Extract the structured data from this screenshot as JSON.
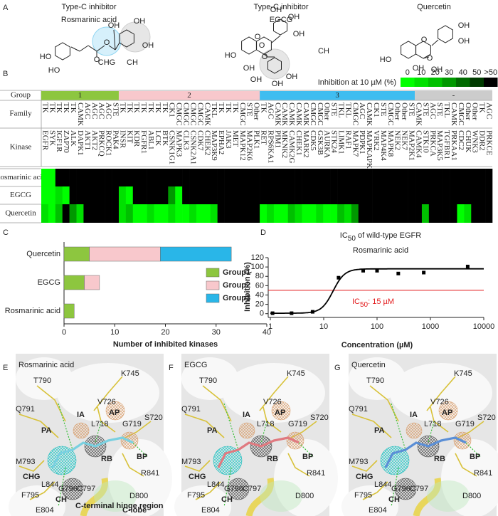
{
  "panel_letters": [
    "A",
    "B",
    "C",
    "D",
    "E",
    "F",
    "G"
  ],
  "panel_a": {
    "molecules": [
      {
        "caption": [
          "Type-C inhibitor",
          "Rosmarinic acid"
        ],
        "atoms": [
          "HO",
          "HO",
          "O",
          "O",
          "OH",
          "OH",
          "OH"
        ],
        "regions": [
          "CHG",
          "CH"
        ],
        "region_colors": [
          "#29abe2",
          "#9a9a9a"
        ]
      },
      {
        "caption": [
          "Type-C inhibitor",
          "EGCG"
        ],
        "atoms": [
          "HO",
          "O",
          "OH",
          "OH",
          "OH",
          "OH",
          "O",
          "O",
          "OH",
          "OH",
          "OH"
        ],
        "regions": [
          "CH"
        ],
        "region_colors": [
          "#9a9a9a"
        ]
      },
      {
        "caption": [
          "Quercetin"
        ],
        "atoms": [
          "HO",
          "O",
          "OH",
          "OH",
          "OH",
          "O",
          "OH"
        ]
      }
    ]
  },
  "panel_b": {
    "legend": {
      "title": "Inhibition at 10 µM (%)",
      "ticks": [
        0,
        10,
        20,
        30,
        40,
        50,
        {
          "value": 60,
          "label": ">50"
        }
      ],
      "colors": [
        "#00ff00",
        "#00e000",
        "#00c000",
        "#009800",
        "#006a00",
        "#003a00",
        "#000000"
      ]
    },
    "row_headers": {
      "group": "Group",
      "family": "Family",
      "kinase": "Kinase"
    },
    "groups": [
      {
        "label": "1",
        "color": "#8dc63f",
        "kinases": [
          {
            "name": "EGFR",
            "family": "TK"
          },
          {
            "name": "SYK",
            "family": "TK"
          },
          {
            "name": "IGF1R",
            "family": "TK"
          },
          {
            "name": "ZAP70",
            "family": "TK"
          },
          {
            "name": "ALK",
            "family": "TK"
          },
          {
            "name": "DAPK1",
            "family": "CAMK"
          },
          {
            "name": "AKT1",
            "family": "AGC"
          },
          {
            "name": "AKT2",
            "family": "AGC"
          },
          {
            "name": "PRKCQ",
            "family": "AGC"
          },
          {
            "name": "ROCK1",
            "family": "AGC"
          },
          {
            "name": "PAK4",
            "family": "STE"
          }
        ]
      },
      {
        "label": "2",
        "color": "#f8c8cc",
        "kinases": [
          {
            "name": "INSR",
            "family": "TK"
          },
          {
            "name": "KIT",
            "family": "TK"
          },
          {
            "name": "KDR",
            "family": "TK"
          },
          {
            "name": "FGFR1",
            "family": "TK"
          },
          {
            "name": "ABL1",
            "family": "TK"
          },
          {
            "name": "LCK",
            "family": "TK"
          },
          {
            "name": "BTK",
            "family": "TK"
          },
          {
            "name": "CSNK1G1",
            "family": "CK1"
          },
          {
            "name": "MAPK3",
            "family": "CMGC"
          },
          {
            "name": "CLK3",
            "family": "CMGC"
          },
          {
            "name": "CSNK2A1",
            "family": "CMGC"
          },
          {
            "name": "CDK7",
            "family": "CMGC"
          },
          {
            "name": "CHEK2",
            "family": "CAMK"
          },
          {
            "name": "MAP3K9",
            "family": "TKL"
          },
          {
            "name": "EPHA2",
            "family": "TK"
          },
          {
            "name": "JAK3",
            "family": "TK"
          },
          {
            "name": "MET",
            "family": "TK"
          },
          {
            "name": "MAPK12",
            "family": "CMGC"
          },
          {
            "name": "MAP2K6",
            "family": "STE"
          },
          {
            "name": "PLK1",
            "family": "Other"
          }
        ]
      },
      {
        "label": "3",
        "color": "#3fbdf0",
        "kinases": [
          {
            "name": "RET",
            "family": "TK"
          },
          {
            "name": "RPS6KA1",
            "family": "AGC"
          },
          {
            "name": "PIM1",
            "family": "CAMK"
          },
          {
            "name": "MKNK2",
            "family": "CAMK"
          },
          {
            "name": "CAMK2G",
            "family": "CAMK"
          },
          {
            "name": "CHEK1",
            "family": "CAMK"
          },
          {
            "name": "MARK2",
            "family": "CAMK"
          },
          {
            "name": "CDK5",
            "family": "CMGC"
          },
          {
            "name": "GSK3B",
            "family": "CMGC"
          },
          {
            "name": "AURKA",
            "family": "Other"
          },
          {
            "name": "STK24",
            "family": "STE"
          },
          {
            "name": "LIMK1",
            "family": "TKL"
          },
          {
            "name": "RAF1",
            "family": "TKL"
          },
          {
            "name": "MAPK7",
            "family": "CMGC"
          },
          {
            "name": "PDPK1",
            "family": "AGC"
          },
          {
            "name": "MAPKAPK2",
            "family": "CAMK"
          },
          {
            "name": "VRK2",
            "family": "CK1"
          },
          {
            "name": "MAP4K4",
            "family": "STE"
          },
          {
            "name": "MAPK8",
            "family": "CMGC"
          },
          {
            "name": "NEK2",
            "family": "Other"
          },
          {
            "name": "NEK7",
            "family": "Other"
          },
          {
            "name": "MAP2K1",
            "family": "STE"
          }
        ]
      },
      {
        "label": "-",
        "color": "#cccccc",
        "kinases": [
          {
            "name": "CAMK4",
            "family": "CAMK"
          },
          {
            "name": "STK10",
            "family": "STE"
          },
          {
            "name": "PRKCA",
            "family": "AGC"
          },
          {
            "name": "MAP3K5",
            "family": "STE"
          },
          {
            "name": "TGFBR1",
            "family": "TKL"
          },
          {
            "name": "PRKAA1",
            "family": "CAMK"
          },
          {
            "name": "CDC2",
            "family": "CMGC"
          },
          {
            "name": "CHUK",
            "family": "Other"
          },
          {
            "name": "WNK3",
            "family": "Other"
          },
          {
            "name": "DDR2",
            "family": "TK"
          },
          {
            "name": "PRKCE",
            "family": "AGC"
          }
        ]
      }
    ],
    "rows": [
      {
        "compound": "Rosmarinic acid",
        "values": [
          0,
          0,
          60,
          60,
          60,
          60,
          60,
          60,
          60,
          60,
          60,
          60,
          60,
          60,
          60,
          60,
          60,
          60,
          60,
          60,
          60,
          60,
          60,
          60,
          60,
          60,
          60,
          60,
          60,
          60,
          60,
          60,
          60,
          60,
          60,
          60,
          60,
          60,
          60,
          60,
          60,
          60,
          60,
          60,
          60,
          60,
          60,
          60,
          60,
          60,
          60,
          60,
          60,
          60,
          60,
          60,
          60,
          60,
          60,
          60,
          60,
          60,
          60,
          60
        ]
      },
      {
        "compound": "EGCG",
        "values": [
          0,
          0,
          10,
          0,
          60,
          60,
          60,
          60,
          60,
          60,
          60,
          10,
          0,
          60,
          60,
          60,
          60,
          60,
          30,
          0,
          60,
          60,
          60,
          60,
          60,
          60,
          60,
          60,
          60,
          60,
          60,
          60,
          60,
          60,
          60,
          60,
          60,
          60,
          60,
          60,
          60,
          60,
          60,
          60,
          60,
          60,
          60,
          60,
          60,
          60,
          60,
          60,
          60,
          60,
          60,
          60,
          60,
          60,
          60,
          60,
          60,
          60,
          60,
          60
        ]
      },
      {
        "compound": "Quercetin",
        "values": [
          10,
          0,
          20,
          60,
          30,
          10,
          60,
          60,
          60,
          60,
          60,
          10,
          20,
          0,
          0,
          10,
          0,
          0,
          10,
          0,
          0,
          10,
          0,
          0,
          10,
          60,
          60,
          60,
          60,
          60,
          60,
          0,
          10,
          0,
          0,
          20,
          10,
          0,
          0,
          10,
          0,
          0,
          20,
          10,
          30,
          60,
          60,
          60,
          60,
          60,
          60,
          60,
          60,
          60,
          20,
          60,
          60,
          60,
          60,
          0,
          10,
          60,
          60,
          60
        ]
      }
    ]
  },
  "chart_data": [
    {
      "type": "bar",
      "orientation": "horizontal",
      "stacked": true,
      "categories": [
        "Quercetin",
        "EGCG",
        "Rosmarinic acid"
      ],
      "series": [
        {
          "name": "Group1",
          "color": "#8dc63f",
          "values": [
            5,
            4,
            2
          ]
        },
        {
          "name": "Group2",
          "color": "#f8c8cc",
          "values": [
            14,
            3,
            0
          ]
        },
        {
          "name": "Group3",
          "color": "#29b6e8",
          "values": [
            14,
            0,
            0
          ]
        }
      ],
      "xlabel": "Number of inhibited kinases",
      "xlim": [
        0,
        40
      ],
      "xticks": [
        0,
        10,
        20,
        30,
        40
      ],
      "legend": "right"
    },
    {
      "type": "scatter",
      "title_parts": [
        "IC",
        "50",
        " of wild-type EGFR"
      ],
      "subtitle": "Rosmarinic acid",
      "x": [
        1.1,
        2.5,
        6.2,
        19,
        55,
        100,
        250,
        750,
        5000
      ],
      "values": [
        1,
        1,
        4,
        77,
        92,
        92,
        86,
        88,
        101
      ],
      "color": "#000000",
      "xlabel": "Concentration (µM)",
      "ylabel": "Inhibition (%)",
      "xscale": "log",
      "xlim": [
        1,
        10000
      ],
      "xticks": [
        1,
        10,
        100,
        1000,
        10000
      ],
      "ylim": [
        -5,
        120
      ],
      "yticks": [
        0,
        20,
        40,
        60,
        80,
        100,
        120
      ],
      "reference_line": {
        "value": 50,
        "color": "#e31a1c"
      },
      "annotation": {
        "parts": [
          "IC",
          "50",
          ": 15 µM"
        ],
        "color": "#e31a1c"
      },
      "fit": {
        "bottom": 1,
        "top": 96,
        "ic50": 15,
        "hill": 4
      }
    }
  ],
  "panel_structures": [
    {
      "ligand_color": "#7ad0e0",
      "labels": [
        "Rosmarinic acid",
        "T790",
        "K745",
        "Q791",
        "V726",
        "IA",
        "AP",
        "L718",
        "G719",
        "S720",
        "PA",
        "RB",
        "BP",
        "M793",
        "CHG",
        "L844",
        "G796",
        "C797",
        "R841",
        "F795",
        "CH",
        "D800",
        "E804",
        "C-terminal hinge region",
        "C-lobe"
      ]
    },
    {
      "ligand_color": "#e07a80",
      "labels": [
        "EGCG",
        "T790",
        "K745",
        "Q791",
        "V726",
        "IA",
        "AP",
        "L718",
        "G719",
        "S720",
        "PA",
        "RB",
        "BP",
        "M793",
        "CHG",
        "L844",
        "G796",
        "C797",
        "R841",
        "F795",
        "CH",
        "D800",
        "E804"
      ]
    },
    {
      "ligand_color": "#5b8fd6",
      "labels": [
        "Quercetin",
        "T790",
        "K745",
        "Q791",
        "V726",
        "IA",
        "AP",
        "L718",
        "G719",
        "S720",
        "PA",
        "RB",
        "BP",
        "M793",
        "CHG",
        "L844",
        "G796",
        "C797",
        "R841",
        "F795",
        "CH",
        "D800",
        "E804"
      ]
    }
  ]
}
